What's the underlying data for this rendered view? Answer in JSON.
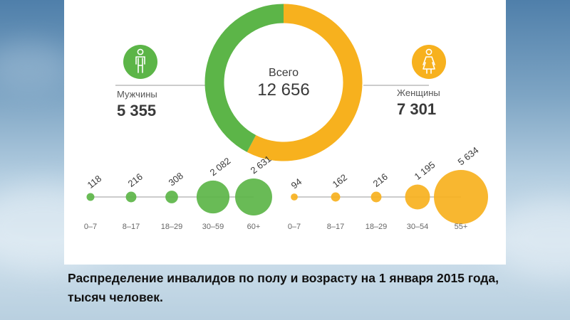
{
  "colors": {
    "men": "#5cb548",
    "women": "#f7b11e",
    "text_dark": "#3a3a3a",
    "text_mid": "#555555",
    "line": "#9a9a9a"
  },
  "icons": {
    "men": "male-person-icon",
    "women": "female-person-icon"
  },
  "caption": "Распределение инвалидов по полу и возрасту на 1 января 2015 года, тысяч человек.",
  "chart_data": [
    {
      "type": "pie",
      "variant": "donut",
      "center_label": "Всего",
      "center_value": "12 656",
      "total": 12656,
      "slices": [
        {
          "label": "Мужчины",
          "value": 5355,
          "display": "5 355",
          "color": "#5cb548"
        },
        {
          "label": "Женщины",
          "value": 7301,
          "display": "7 301",
          "color": "#f7b11e"
        }
      ]
    },
    {
      "type": "scatter",
      "variant": "bubble",
      "group": "Мужчины",
      "color": "#5cb548",
      "categories": [
        "0–7",
        "8–17",
        "18–29",
        "30–59",
        "60+"
      ],
      "values": [
        118,
        216,
        308,
        2082,
        2631
      ],
      "labels": [
        "118",
        "216",
        "308",
        "2 082",
        "2 631"
      ]
    },
    {
      "type": "scatter",
      "variant": "bubble",
      "group": "Женщины",
      "color": "#f7b11e",
      "categories": [
        "0–7",
        "8–17",
        "18–29",
        "30–54",
        "55+"
      ],
      "values": [
        94,
        162,
        216,
        1195,
        5634
      ],
      "labels": [
        "94",
        "162",
        "216",
        "1 195",
        "5 634"
      ]
    }
  ]
}
